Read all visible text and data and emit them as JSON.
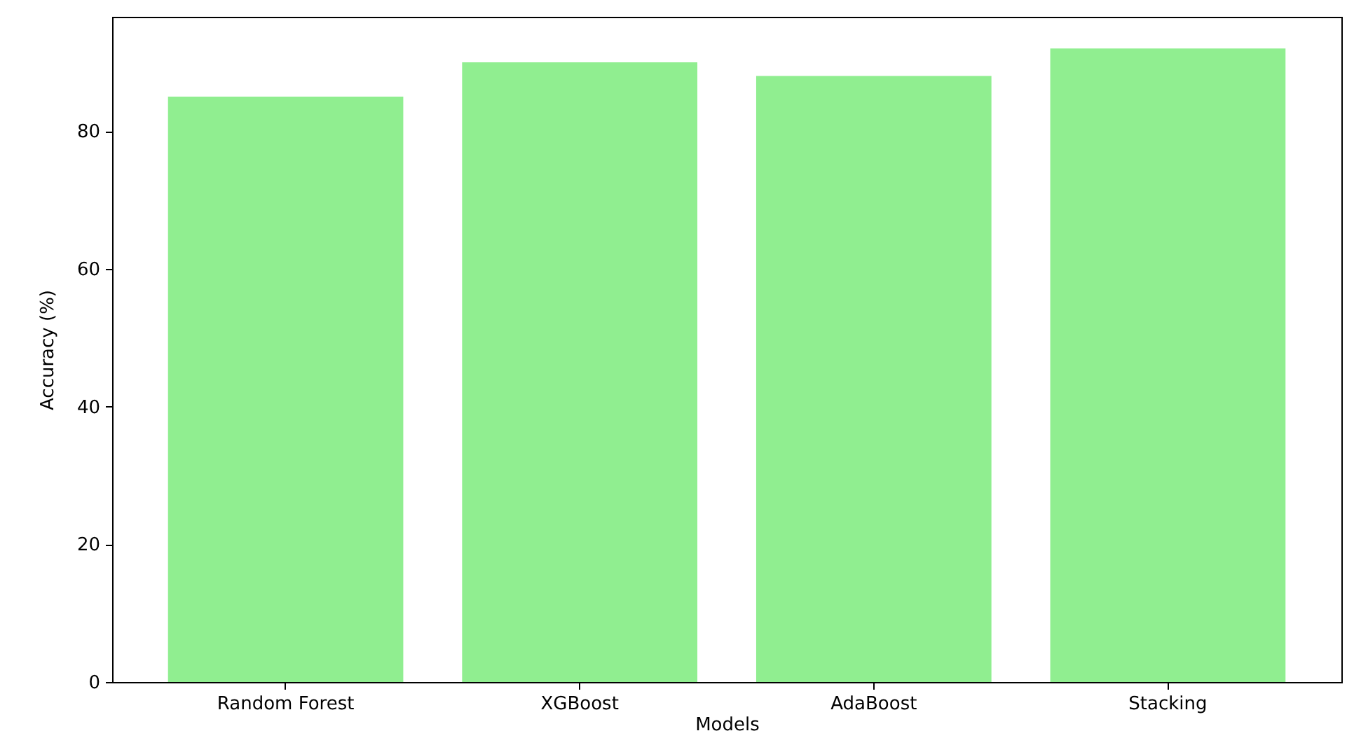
{
  "chart_data": {
    "type": "bar",
    "xlabel": "Models",
    "ylabel": "Accuracy (%)",
    "categories": [
      "Random Forest",
      "XGBoost",
      "AdaBoost",
      "Stacking"
    ],
    "values": [
      85,
      90,
      88,
      92
    ],
    "color": "#90ee90",
    "ylim": [
      0,
      96.6
    ],
    "yticks": [
      0,
      20,
      40,
      60,
      80
    ],
    "grid": false
  }
}
